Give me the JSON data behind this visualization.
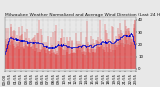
{
  "title": "Milwaukee Weather Normalized and Average Wind Direction (Last 24 Hours)",
  "background_color": "#e8e8e8",
  "plot_bg_color": "#e8e8e8",
  "grid_color": "#aaaaaa",
  "bar_color": "#dd0000",
  "line_color": "#0000cc",
  "n_points": 288,
  "seed": 42,
  "ylim": [
    -2,
    42
  ],
  "yticks": [
    0,
    10,
    20,
    30,
    40
  ],
  "y_label_values": [
    "0",
    "10",
    "20",
    "30",
    "40"
  ],
  "title_fontsize": 3.2,
  "tick_fontsize": 2.8,
  "n_xticks": 25
}
